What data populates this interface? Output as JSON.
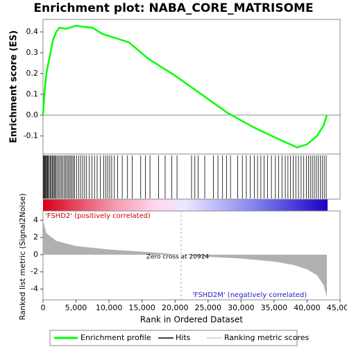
{
  "chart_data": [
    {
      "type": "line",
      "title": "Enrichment plot: NABA_CORE_MATRISOME",
      "ylabel": "Enrichment score (ES)",
      "color": "#00ff00",
      "x": [
        0,
        200,
        500,
        1000,
        1500,
        2000,
        2500,
        3500,
        5000,
        6000,
        7500,
        9000,
        10000,
        13000,
        16000,
        20000,
        24000,
        28000,
        32000,
        36000,
        38500,
        40000,
        41500,
        42500,
        43000
      ],
      "values": [
        0,
        0.1,
        0.2,
        0.28,
        0.36,
        0.4,
        0.42,
        0.415,
        0.43,
        0.425,
        0.42,
        0.39,
        0.38,
        0.35,
        0.27,
        0.19,
        0.1,
        0.01,
        -0.06,
        -0.12,
        -0.155,
        -0.14,
        -0.1,
        -0.05,
        0.0
      ],
      "xlim": [
        0,
        45000
      ],
      "ylim": [
        -0.187,
        0.46
      ],
      "yticks": [
        -0.1,
        {
          "value": 0,
          "label": "0.0"
        },
        0.1,
        0.2,
        0.3,
        0.4
      ],
      "legend": [
        "Enrichment profile",
        "Hits",
        "Ranking metric scores"
      ]
    },
    {
      "type": "rug",
      "color": "#000000",
      "xlim": [
        0,
        45000
      ],
      "x": [
        50,
        150,
        250,
        350,
        450,
        600,
        700,
        800,
        950,
        1100,
        1250,
        1400,
        1550,
        1700,
        1850,
        2000,
        2200,
        2400,
        2600,
        2800,
        3000,
        3200,
        3400,
        3600,
        3800,
        4000,
        4200,
        4400,
        4600,
        4800,
        5100,
        5400,
        5700,
        6000,
        6300,
        6600,
        7000,
        7400,
        7800,
        8200,
        8700,
        9200,
        9500,
        9800,
        10100,
        10400,
        10800,
        11300,
        12000,
        12800,
        13500,
        14800,
        15500,
        16200,
        17500,
        18500,
        19500,
        20300,
        22500,
        23000,
        23500,
        24500,
        25800,
        26500,
        27200,
        27800,
        28400,
        29500,
        30200,
        30800,
        31400,
        32000,
        32500,
        33000,
        33500,
        34000,
        34600,
        35200,
        35700,
        36200,
        36700,
        37100,
        37500,
        37900,
        38300,
        38700,
        39100,
        39500,
        39900,
        40200,
        40500,
        40800,
        41100,
        41400,
        41700,
        42000,
        42300,
        42600,
        42900
      ]
    },
    {
      "type": "area",
      "ylabel": "Ranked list metric (Signal2Noise)",
      "xlabel": "Rank in Ordered Dataset",
      "color": "#b0b0b0",
      "x": [
        0,
        500,
        2000,
        5000,
        10000,
        15000,
        20924,
        25000,
        30000,
        35000,
        38000,
        40000,
        41500,
        42500,
        43000
      ],
      "values": [
        4,
        2.5,
        1.6,
        1.0,
        0.6,
        0.35,
        0,
        -0.25,
        -0.45,
        -0.8,
        -1.2,
        -1.7,
        -2.4,
        -3.5,
        -5.0
      ],
      "xlim": [
        0,
        45000
      ],
      "ylim": [
        -5.25,
        5.08
      ],
      "yticks": [
        -4,
        -2,
        0,
        2,
        4
      ],
      "xticks": [
        0,
        {
          "value": 5000,
          "label": "5,000"
        },
        {
          "value": 10000,
          "label": "10,000"
        },
        {
          "value": 15000,
          "label": "15,000"
        },
        {
          "value": 20000,
          "label": "20,000"
        },
        {
          "value": 25000,
          "label": "25,000"
        },
        {
          "value": 30000,
          "label": "30,000"
        },
        {
          "value": 35000,
          "label": "35,000"
        },
        {
          "value": 40000,
          "label": "40,000"
        },
        {
          "value": 45000,
          "label": "45,000"
        }
      ],
      "zero_cross": 20924,
      "zero_cross_label": "Zero cross at 20924",
      "pos_label": "'FSHD2' (positively correlated)",
      "neg_label": "'FSHD2M' (negatively correlated)"
    }
  ]
}
